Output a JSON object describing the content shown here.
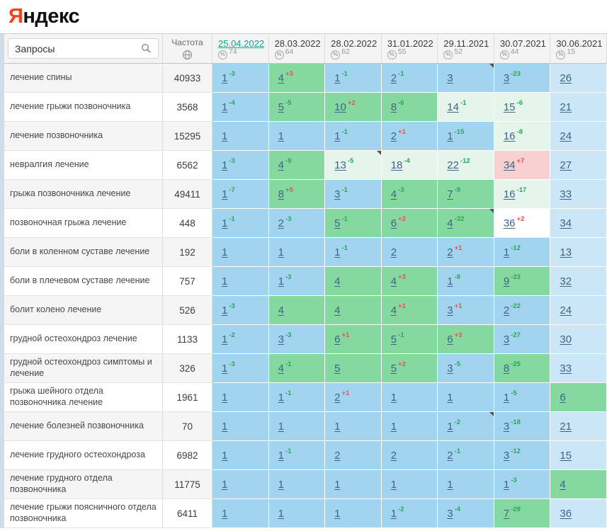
{
  "logo": {
    "ya": "Я",
    "rest": "ндекс"
  },
  "header": {
    "queries_label": "Запросы",
    "frequency_label": "Частота",
    "dates": [
      {
        "label": "25.04.2022",
        "count": "74",
        "active": true
      },
      {
        "label": "28.03.2022",
        "count": "64",
        "active": false
      },
      {
        "label": "28.02.2022",
        "count": "62",
        "active": false
      },
      {
        "label": "31.01.2022",
        "count": "55",
        "active": false
      },
      {
        "label": "29.11.2021",
        "count": "52",
        "active": false
      },
      {
        "label": "30.07.2021",
        "count": "44",
        "active": false
      },
      {
        "label": "30.06.2021",
        "count": "15",
        "active": false
      }
    ]
  },
  "colors": {
    "logo_red": "#fc3f1d",
    "accent_teal": "#0ba98d",
    "strip_blue": "#cfdde8",
    "link_blue": "#3e6384",
    "delta_green": "#27a65a",
    "delta_red": "#e05252",
    "top3_blue": "#a3d4ef",
    "top10_green": "#85d9a0",
    "top30_pale": "#e6f5eb",
    "baseline_blue": "#cbe6f6",
    "alert_pink": "#f8d0d0"
  },
  "rows": [
    {
      "query": "лечение спины",
      "frequency": "40933",
      "cells": [
        {
          "pos": "1",
          "delta": "-3"
        },
        {
          "pos": "4",
          "delta": "+3"
        },
        {
          "pos": "1",
          "delta": "-1"
        },
        {
          "pos": "2",
          "delta": "-1"
        },
        {
          "pos": "3",
          "mark": true
        },
        {
          "pos": "3",
          "delta": "-23"
        },
        {
          "pos": "26"
        }
      ]
    },
    {
      "query": "лечение грыжи позвоночника",
      "frequency": "3568",
      "cells": [
        {
          "pos": "1",
          "delta": "-4"
        },
        {
          "pos": "5",
          "delta": "-5"
        },
        {
          "pos": "10",
          "delta": "+2"
        },
        {
          "pos": "8",
          "delta": "-6"
        },
        {
          "pos": "14",
          "delta": "-1"
        },
        {
          "pos": "15",
          "delta": "-6"
        },
        {
          "pos": "21"
        }
      ]
    },
    {
      "query": "лечение позвоночника",
      "frequency": "15295",
      "cells": [
        {
          "pos": "1"
        },
        {
          "pos": "1"
        },
        {
          "pos": "1",
          "delta": "-1"
        },
        {
          "pos": "2",
          "delta": "+1"
        },
        {
          "pos": "1",
          "delta": "-15"
        },
        {
          "pos": "16",
          "delta": "-8"
        },
        {
          "pos": "24"
        }
      ]
    },
    {
      "query": "невралгия лечение",
      "frequency": "6562",
      "cells": [
        {
          "pos": "1",
          "delta": "-3"
        },
        {
          "pos": "4",
          "delta": "-9"
        },
        {
          "pos": "13",
          "delta": "-5",
          "mark": true
        },
        {
          "pos": "18",
          "delta": "-4"
        },
        {
          "pos": "22",
          "delta": "-12"
        },
        {
          "pos": "34",
          "delta": "+7",
          "alert": true
        },
        {
          "pos": "27"
        }
      ]
    },
    {
      "query": "грыжа позвоночника лечение",
      "frequency": "49411",
      "cells": [
        {
          "pos": "1",
          "delta": "-7"
        },
        {
          "pos": "8",
          "delta": "+5"
        },
        {
          "pos": "3",
          "delta": "-1"
        },
        {
          "pos": "4",
          "delta": "-3"
        },
        {
          "pos": "7",
          "delta": "-9"
        },
        {
          "pos": "16",
          "delta": "-17"
        },
        {
          "pos": "33"
        }
      ]
    },
    {
      "query": "позвоночная грыжа лечение",
      "frequency": "448",
      "cells": [
        {
          "pos": "1",
          "delta": "-1"
        },
        {
          "pos": "2",
          "delta": "-3"
        },
        {
          "pos": "5",
          "delta": "-1"
        },
        {
          "pos": "6",
          "delta": "+2"
        },
        {
          "pos": "4",
          "delta": "-32",
          "mark": true
        },
        {
          "pos": "36",
          "delta": "+2"
        },
        {
          "pos": "34"
        }
      ]
    },
    {
      "query": "боли в коленном суставе лечение",
      "frequency": "192",
      "cells": [
        {
          "pos": "1"
        },
        {
          "pos": "1"
        },
        {
          "pos": "1",
          "delta": "-1"
        },
        {
          "pos": "2"
        },
        {
          "pos": "2",
          "delta": "+1"
        },
        {
          "pos": "1",
          "delta": "-12"
        },
        {
          "pos": "13"
        }
      ]
    },
    {
      "query": "боли в плечевом суставе лечение",
      "frequency": "757",
      "cells": [
        {
          "pos": "1"
        },
        {
          "pos": "1",
          "delta": "-3"
        },
        {
          "pos": "4"
        },
        {
          "pos": "4",
          "delta": "+3"
        },
        {
          "pos": "1",
          "delta": "-8"
        },
        {
          "pos": "9",
          "delta": "-23"
        },
        {
          "pos": "32"
        }
      ]
    },
    {
      "query": "болит колено лечение",
      "frequency": "526",
      "cells": [
        {
          "pos": "1",
          "delta": "-3"
        },
        {
          "pos": "4"
        },
        {
          "pos": "4"
        },
        {
          "pos": "4",
          "delta": "+1"
        },
        {
          "pos": "3",
          "delta": "+1"
        },
        {
          "pos": "2",
          "delta": "-22"
        },
        {
          "pos": "24"
        }
      ]
    },
    {
      "query": "грудной остеохондроз лечение",
      "frequency": "1133",
      "cells": [
        {
          "pos": "1",
          "delta": "-2"
        },
        {
          "pos": "3",
          "delta": "-3"
        },
        {
          "pos": "6",
          "delta": "+1"
        },
        {
          "pos": "5",
          "delta": "-1"
        },
        {
          "pos": "6",
          "delta": "+3"
        },
        {
          "pos": "3",
          "delta": "-27"
        },
        {
          "pos": "30"
        }
      ]
    },
    {
      "query": "грудной остеохондроз симптомы и лечение",
      "frequency": "326",
      "cells": [
        {
          "pos": "1",
          "delta": "-3"
        },
        {
          "pos": "4",
          "delta": "-1"
        },
        {
          "pos": "5"
        },
        {
          "pos": "5",
          "delta": "+2"
        },
        {
          "pos": "3",
          "delta": "-5"
        },
        {
          "pos": "8",
          "delta": "-25"
        },
        {
          "pos": "33"
        }
      ]
    },
    {
      "query": "грыжа шейного отдела позвоночника лечение",
      "frequency": "1961",
      "cells": [
        {
          "pos": "1"
        },
        {
          "pos": "1",
          "delta": "-1"
        },
        {
          "pos": "2",
          "delta": "+1"
        },
        {
          "pos": "1"
        },
        {
          "pos": "1"
        },
        {
          "pos": "1",
          "delta": "-5"
        },
        {
          "pos": "6"
        }
      ]
    },
    {
      "query": "лечение болезней позвоночника",
      "frequency": "70",
      "cells": [
        {
          "pos": "1"
        },
        {
          "pos": "1"
        },
        {
          "pos": "1"
        },
        {
          "pos": "1"
        },
        {
          "pos": "1",
          "delta": "-2",
          "mark": true
        },
        {
          "pos": "3",
          "delta": "-18"
        },
        {
          "pos": "21"
        }
      ]
    },
    {
      "query": "лечение грудного остеохондроза",
      "frequency": "6982",
      "cells": [
        {
          "pos": "1"
        },
        {
          "pos": "1",
          "delta": "-1"
        },
        {
          "pos": "2"
        },
        {
          "pos": "2"
        },
        {
          "pos": "2",
          "delta": "-1"
        },
        {
          "pos": "3",
          "delta": "-12"
        },
        {
          "pos": "15"
        }
      ]
    },
    {
      "query": "лечение грудного отдела позвоночника",
      "frequency": "11775",
      "cells": [
        {
          "pos": "1"
        },
        {
          "pos": "1"
        },
        {
          "pos": "1"
        },
        {
          "pos": "1"
        },
        {
          "pos": "1"
        },
        {
          "pos": "1",
          "delta": "-3"
        },
        {
          "pos": "4"
        }
      ]
    },
    {
      "query": "лечение грыжи поясничного отдела позвоночника",
      "frequency": "6411",
      "cells": [
        {
          "pos": "1"
        },
        {
          "pos": "1"
        },
        {
          "pos": "1"
        },
        {
          "pos": "1",
          "delta": "-2"
        },
        {
          "pos": "3",
          "delta": "-4"
        },
        {
          "pos": "7",
          "delta": "-29"
        },
        {
          "pos": "36"
        }
      ]
    }
  ]
}
